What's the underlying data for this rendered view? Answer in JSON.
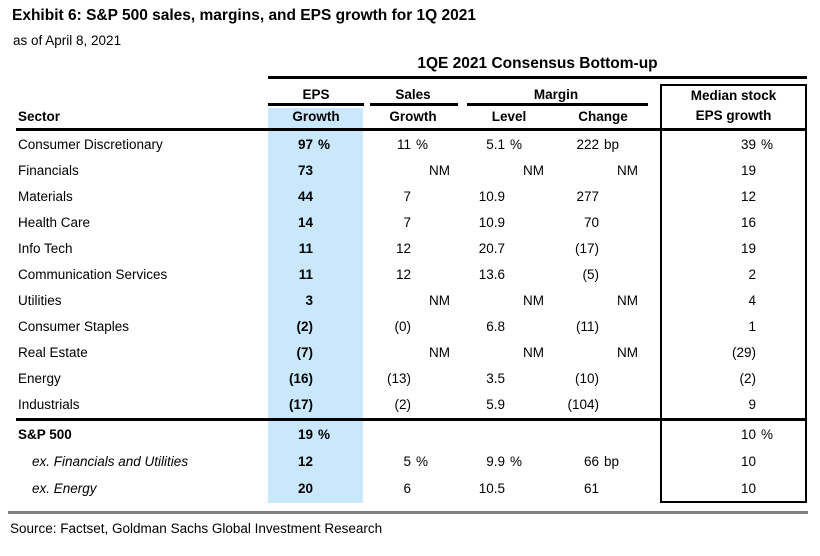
{
  "exhibit": {
    "title": "Exhibit 6: S&P 500 sales, margins, and EPS growth for 1Q 2021",
    "subtitle": "as of April 8, 2021",
    "source": "Source: Factset, Goldman Sachs Global Investment Research"
  },
  "table": {
    "title": "1QE 2021 Consensus Bottom-up",
    "group_headers": {
      "eps": "EPS",
      "sales": "Sales",
      "margin": "Margin",
      "median_line1": "Median stock",
      "median_line2": "EPS growth"
    },
    "column_headers": {
      "sector": "Sector",
      "eps_growth": "Growth",
      "sales_growth": "Growth",
      "margin_level": "Level",
      "margin_change": "Change"
    },
    "highlight_color": "#c9e8fb",
    "rows": [
      {
        "sector": "Consumer Discretionary",
        "eps": [
          "97",
          "%"
        ],
        "sales": [
          "11",
          "%"
        ],
        "level": [
          "5.1",
          "%"
        ],
        "change": [
          "222",
          "bp"
        ],
        "median": [
          "39",
          "%"
        ]
      },
      {
        "sector": "Financials",
        "eps": [
          "73",
          ""
        ],
        "sales": [
          "NM",
          ""
        ],
        "level": [
          "NM",
          ""
        ],
        "change": [
          "NM",
          ""
        ],
        "median": [
          "19",
          ""
        ]
      },
      {
        "sector": "Materials",
        "eps": [
          "44",
          ""
        ],
        "sales": [
          "7",
          ""
        ],
        "level": [
          "10.9",
          ""
        ],
        "change": [
          "277",
          ""
        ],
        "median": [
          "12",
          ""
        ]
      },
      {
        "sector": "Health Care",
        "eps": [
          "14",
          ""
        ],
        "sales": [
          "7",
          ""
        ],
        "level": [
          "10.9",
          ""
        ],
        "change": [
          "70",
          ""
        ],
        "median": [
          "16",
          ""
        ]
      },
      {
        "sector": "Info Tech",
        "eps": [
          "11",
          ""
        ],
        "sales": [
          "12",
          ""
        ],
        "level": [
          "20.7",
          ""
        ],
        "change": [
          "(17)",
          ""
        ],
        "median": [
          "19",
          ""
        ]
      },
      {
        "sector": "Communication Services",
        "eps": [
          "11",
          ""
        ],
        "sales": [
          "12",
          ""
        ],
        "level": [
          "13.6",
          ""
        ],
        "change": [
          "(5)",
          ""
        ],
        "median": [
          "2",
          ""
        ]
      },
      {
        "sector": "Utilities",
        "eps": [
          "3",
          ""
        ],
        "sales": [
          "NM",
          ""
        ],
        "level": [
          "NM",
          ""
        ],
        "change": [
          "NM",
          ""
        ],
        "median": [
          "4",
          ""
        ]
      },
      {
        "sector": "Consumer Staples",
        "eps": [
          "(2)",
          ""
        ],
        "sales": [
          "(0)",
          ""
        ],
        "level": [
          "6.8",
          ""
        ],
        "change": [
          "(11)",
          ""
        ],
        "median": [
          "1",
          ""
        ]
      },
      {
        "sector": "Real Estate",
        "eps": [
          "(7)",
          ""
        ],
        "sales": [
          "NM",
          ""
        ],
        "level": [
          "NM",
          ""
        ],
        "change": [
          "NM",
          ""
        ],
        "median": [
          "(29)",
          ""
        ]
      },
      {
        "sector": "Energy",
        "eps": [
          "(16)",
          ""
        ],
        "sales": [
          "(13)",
          ""
        ],
        "level": [
          "3.5",
          ""
        ],
        "change": [
          "(10)",
          ""
        ],
        "median": [
          "(2)",
          ""
        ]
      },
      {
        "sector": "Industrials",
        "eps": [
          "(17)",
          ""
        ],
        "sales": [
          "(2)",
          ""
        ],
        "level": [
          "5.9",
          ""
        ],
        "change": [
          "(104)",
          ""
        ],
        "median": [
          "9",
          ""
        ]
      }
    ],
    "summary_rows": [
      {
        "sector": "S&P 500",
        "style": "bold",
        "eps": [
          "19",
          "%"
        ],
        "sales": null,
        "level": null,
        "change": null,
        "median": [
          "10",
          "%"
        ]
      },
      {
        "sector": "ex. Financials and Utilities",
        "style": "ex",
        "eps": [
          "12",
          ""
        ],
        "sales": [
          "5",
          "%"
        ],
        "level": [
          "9.9",
          "%"
        ],
        "change": [
          "66",
          "bp"
        ],
        "median": [
          "10",
          ""
        ]
      },
      {
        "sector": "ex. Energy",
        "style": "ex",
        "eps": [
          "20",
          ""
        ],
        "sales": [
          "6",
          ""
        ],
        "level": [
          "10.5",
          ""
        ],
        "change": [
          "61",
          ""
        ],
        "median": [
          "10",
          ""
        ]
      }
    ]
  }
}
